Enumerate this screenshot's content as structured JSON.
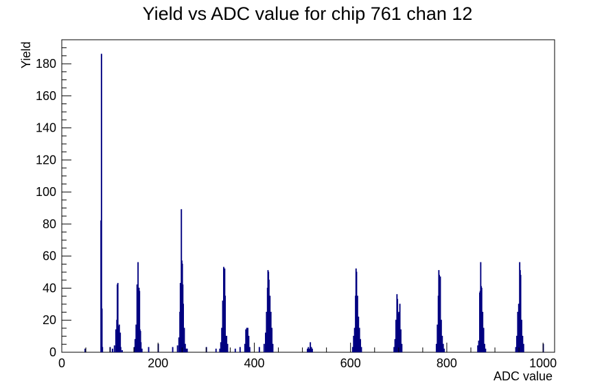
{
  "chart_data": {
    "type": "bar",
    "title": "Yield vs ADC value for chip 761 chan 12",
    "xlabel": "ADC value",
    "ylabel": "Yield",
    "xlim": [
      0,
      1024
    ],
    "ylim": [
      0,
      195
    ],
    "x_ticks": [
      0,
      200,
      400,
      600,
      800,
      1000
    ],
    "y_ticks": [
      0,
      20,
      40,
      60,
      80,
      100,
      120,
      140,
      160,
      180
    ],
    "grid": false,
    "line_color": "#000080",
    "series": [
      {
        "bins": [
          [
            48,
            2
          ],
          [
            81,
            82
          ],
          [
            82,
            186
          ],
          [
            83,
            27
          ],
          [
            84,
            3
          ],
          [
            100,
            3
          ],
          [
            105,
            2
          ],
          [
            109,
            4
          ],
          [
            112,
            14
          ],
          [
            114,
            20
          ],
          [
            115,
            42
          ],
          [
            116,
            43
          ],
          [
            117,
            16
          ],
          [
            118,
            8
          ],
          [
            119,
            17
          ],
          [
            120,
            10
          ],
          [
            121,
            12
          ],
          [
            122,
            3
          ],
          [
            125,
            1
          ],
          [
            150,
            3
          ],
          [
            152,
            8
          ],
          [
            154,
            17
          ],
          [
            156,
            42
          ],
          [
            157,
            35
          ],
          [
            158,
            56
          ],
          [
            159,
            40
          ],
          [
            160,
            40
          ],
          [
            161,
            38
          ],
          [
            162,
            14
          ],
          [
            163,
            13
          ],
          [
            164,
            6
          ],
          [
            166,
            2
          ],
          [
            180,
            3
          ],
          [
            200,
            5
          ],
          [
            230,
            3
          ],
          [
            240,
            4
          ],
          [
            243,
            9
          ],
          [
            245,
            25
          ],
          [
            246,
            43
          ],
          [
            247,
            35
          ],
          [
            248,
            89
          ],
          [
            249,
            57
          ],
          [
            250,
            55
          ],
          [
            251,
            42
          ],
          [
            252,
            30
          ],
          [
            254,
            15
          ],
          [
            256,
            5
          ],
          [
            258,
            2
          ],
          [
            260,
            2
          ],
          [
            300,
            3
          ],
          [
            320,
            2
          ],
          [
            328,
            2
          ],
          [
            330,
            6
          ],
          [
            332,
            15
          ],
          [
            334,
            32
          ],
          [
            335,
            31
          ],
          [
            336,
            53
          ],
          [
            337,
            20
          ],
          [
            338,
            52
          ],
          [
            339,
            35
          ],
          [
            340,
            10
          ],
          [
            342,
            10
          ],
          [
            344,
            5
          ],
          [
            360,
            2
          ],
          [
            370,
            3
          ],
          [
            380,
            5
          ],
          [
            382,
            14
          ],
          [
            384,
            15
          ],
          [
            386,
            15
          ],
          [
            388,
            10
          ],
          [
            390,
            3
          ],
          [
            410,
            3
          ],
          [
            420,
            5
          ],
          [
            423,
            12
          ],
          [
            425,
            25
          ],
          [
            427,
            40
          ],
          [
            428,
            51
          ],
          [
            429,
            50
          ],
          [
            430,
            45
          ],
          [
            432,
            35
          ],
          [
            434,
            25
          ],
          [
            436,
            15
          ],
          [
            438,
            5
          ],
          [
            510,
            2
          ],
          [
            512,
            3
          ],
          [
            514,
            2
          ],
          [
            516,
            6
          ],
          [
            518,
            3
          ],
          [
            520,
            2
          ],
          [
            604,
            3
          ],
          [
            606,
            10
          ],
          [
            608,
            15
          ],
          [
            610,
            35
          ],
          [
            611,
            52
          ],
          [
            612,
            50
          ],
          [
            614,
            35
          ],
          [
            616,
            22
          ],
          [
            618,
            15
          ],
          [
            620,
            8
          ],
          [
            622,
            3
          ],
          [
            690,
            3
          ],
          [
            692,
            8
          ],
          [
            694,
            20
          ],
          [
            696,
            36
          ],
          [
            697,
            33
          ],
          [
            698,
            24
          ],
          [
            700,
            25
          ],
          [
            702,
            30
          ],
          [
            704,
            14
          ],
          [
            706,
            5
          ],
          [
            778,
            5
          ],
          [
            780,
            17
          ],
          [
            782,
            35
          ],
          [
            783,
            51
          ],
          [
            784,
            48
          ],
          [
            785,
            45
          ],
          [
            786,
            47
          ],
          [
            788,
            20
          ],
          [
            790,
            10
          ],
          [
            792,
            5
          ],
          [
            794,
            2
          ],
          [
            864,
            4
          ],
          [
            866,
            7
          ],
          [
            868,
            37
          ],
          [
            869,
            38
          ],
          [
            870,
            56
          ],
          [
            871,
            41
          ],
          [
            872,
            40
          ],
          [
            874,
            25
          ],
          [
            876,
            15
          ],
          [
            878,
            5
          ],
          [
            880,
            2
          ],
          [
            943,
            3
          ],
          [
            945,
            10
          ],
          [
            947,
            25
          ],
          [
            949,
            30
          ],
          [
            951,
            56
          ],
          [
            952,
            51
          ],
          [
            953,
            48
          ],
          [
            955,
            20
          ],
          [
            957,
            10
          ],
          [
            959,
            5
          ],
          [
            1000,
            5
          ]
        ]
      }
    ]
  }
}
